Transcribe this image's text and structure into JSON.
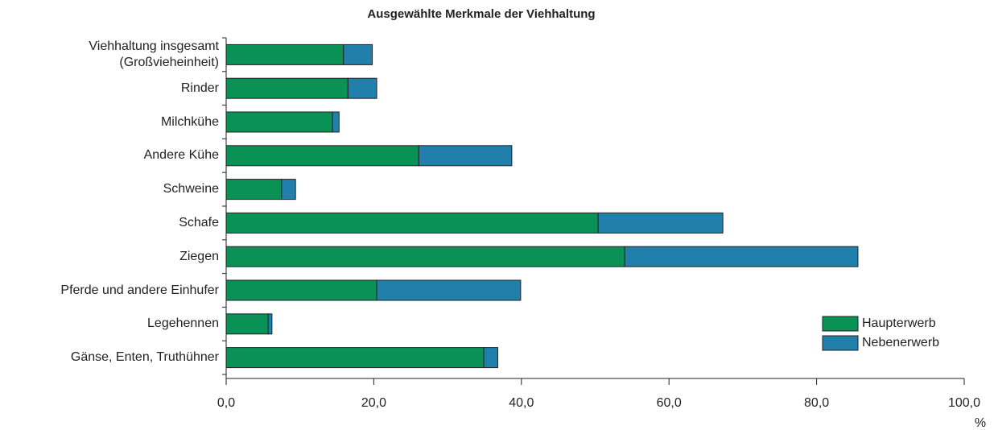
{
  "chart_data": {
    "type": "bar",
    "orientation": "horizontal",
    "stacked": true,
    "title": "Ausgewählte Merkmale der Viehhaltung",
    "x_label": "%",
    "categories": [
      "Viehhaltung insgesamt\n(Großvieheinheit)",
      "Rinder",
      "Milchkühe",
      "Andere Kühe",
      "Schweine",
      "Schafe",
      "Ziegen",
      "Pferde und andere Einhufer",
      "Legehennen",
      "Gänse, Enten, Truthühner"
    ],
    "series": [
      {
        "name": "Haupterwerb",
        "color": "#0a9156",
        "values": [
          15.9,
          16.5,
          14.4,
          26.1,
          7.5,
          50.4,
          54.0,
          20.4,
          5.7,
          34.9
        ]
      },
      {
        "name": "Nebenerwerb",
        "color": "#217fac",
        "values": [
          3.9,
          3.9,
          0.9,
          12.6,
          1.9,
          16.9,
          31.6,
          19.5,
          0.5,
          1.9
        ]
      }
    ],
    "xlim": [
      0,
      100
    ],
    "xticks": [
      {
        "value": 0,
        "label": "0,0"
      },
      {
        "value": 20,
        "label": "20,0"
      },
      {
        "value": 40,
        "label": "40,0"
      },
      {
        "value": 60,
        "label": "60,0"
      },
      {
        "value": 80,
        "label": "80,0"
      },
      {
        "value": 100,
        "label": "100,0"
      }
    ],
    "legend": "lower right"
  }
}
